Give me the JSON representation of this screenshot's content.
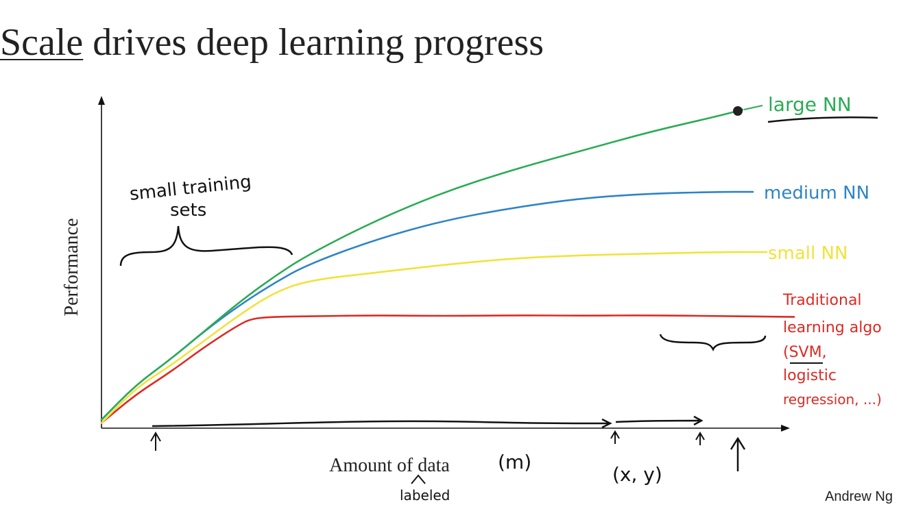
{
  "title": {
    "underlined": "Scale",
    "rest": " drives deep learning progress"
  },
  "footer": {
    "author": "Andrew Ng"
  },
  "colors": {
    "axis": "#111111",
    "ink": "#111111",
    "large_nn": "#2bab55",
    "medium_nn": "#2e84c6",
    "small_nn": "#f2e23a",
    "traditional": "#dc2a24"
  },
  "chart_data": {
    "type": "line",
    "xlabel": "Amount of data",
    "ylabel": "Performance",
    "xlim": [
      0,
      100
    ],
    "ylim": [
      0,
      100
    ],
    "grid": false,
    "series": [
      {
        "name": "large NN",
        "color": "#2bab55",
        "x": [
          0,
          5,
          10,
          15,
          20,
          25,
          30,
          40,
          50,
          60,
          70,
          80,
          90,
          93.5
        ],
        "y": [
          2,
          13,
          21,
          30,
          39,
          47,
          54,
          65,
          74,
          81,
          87,
          93,
          98,
          100
        ]
      },
      {
        "name": "medium NN",
        "color": "#2e84c6",
        "x": [
          0,
          5,
          10,
          15,
          20,
          25,
          30,
          40,
          50,
          60,
          70,
          80,
          90,
          95
        ],
        "y": [
          2,
          13,
          21,
          30,
          38,
          45,
          51,
          59,
          65,
          69,
          72,
          73.5,
          74,
          74
        ]
      },
      {
        "name": "small NN",
        "color": "#f2e23a",
        "x": [
          0,
          5,
          10,
          15,
          20,
          25,
          30,
          40,
          50,
          60,
          70,
          80,
          90,
          97
        ],
        "y": [
          1,
          12,
          19,
          27,
          35,
          42,
          46,
          48.5,
          51,
          53,
          54,
          54.5,
          55,
          55
        ]
      },
      {
        "name": "Traditional learning algo",
        "color": "#dc2a24",
        "x": [
          0,
          5,
          10,
          15,
          20,
          22,
          25,
          30,
          40,
          50,
          60,
          70,
          80,
          90,
          101
        ],
        "y": [
          1,
          10,
          17,
          25,
          32,
          34,
          34.5,
          34.7,
          35,
          34.8,
          35,
          34.9,
          35,
          34.8,
          34.5
        ]
      }
    ],
    "annotations": {
      "large": "large NN",
      "medium": "medium NN",
      "small": "small NN",
      "trad_1": "Traditional",
      "trad_2": "learning algo",
      "trad_3": "(SVM,",
      "trad_4": "logistic",
      "trad_5": "regression, ...)",
      "small_sets_1": "small training",
      "small_sets_2": "sets",
      "m": "(m)",
      "xy": "(x, y)",
      "labeled": "labeled"
    }
  }
}
